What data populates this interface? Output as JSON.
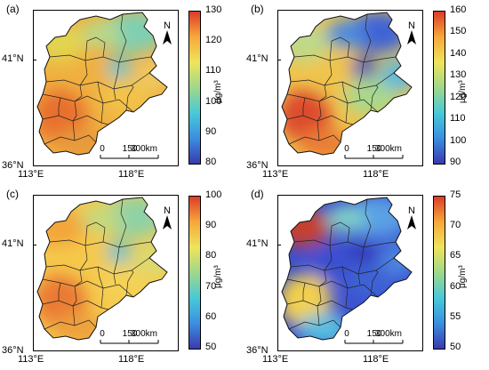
{
  "axes": {
    "lat_north": "41°N",
    "lat_south": "36°N",
    "lon_west": "113°E",
    "lon_east": "118°E"
  },
  "scalebar": {
    "l0": "0",
    "l1": "150",
    "l2": "300km"
  },
  "north": "N",
  "unit": "μg/m³",
  "colormap": [
    "#3a3aaf",
    "#3b8fe0",
    "#48c9d8",
    "#9fd88a",
    "#f0e45a",
    "#f6a83a",
    "#dd3b2a"
  ],
  "panels": [
    {
      "label": "(a)",
      "colorbar_ticks": [
        "130",
        "120",
        "110",
        "100",
        "90",
        "80"
      ],
      "colors": {
        "nw": "#e2d44f",
        "ne": "#7fcfb4",
        "n": "#b6d98b",
        "c": "#f0b040",
        "sw": "#e8702f",
        "s": "#e89a3a",
        "se": "#f2c24a",
        "e": "#eec860",
        "blob": "#62c5cf"
      }
    },
    {
      "label": "(b)",
      "colorbar_ticks": [
        "160",
        "150",
        "140",
        "130",
        "120",
        "110",
        "100",
        "90"
      ],
      "colors": {
        "nw": "#bfd98a",
        "ne": "#3f63d6",
        "n": "#4b8ae0",
        "c": "#f0c44c",
        "sw": "#dd4b2e",
        "s": "#ea7d34",
        "se": "#a8d88c",
        "e": "#5fb8e0",
        "blob": "#3345c2"
      }
    },
    {
      "label": "(c)",
      "colorbar_ticks": [
        "100",
        "90",
        "80",
        "70",
        "60",
        "50"
      ],
      "colors": {
        "nw": "#f3a63a",
        "ne": "#8fd2a6",
        "n": "#c4d97e",
        "c": "#f5c94c",
        "sw": "#ea7a34",
        "s": "#eea23e",
        "se": "#f4d256",
        "e": "#d8db72",
        "blob": "#5bc3d4"
      }
    },
    {
      "label": "(d)",
      "colorbar_ticks": [
        "75",
        "70",
        "65",
        "60",
        "55",
        "50"
      ],
      "colors": {
        "nw": "#c7412e",
        "ne": "#5aa0e4",
        "n": "#7fcfc6",
        "c": "#3b4fd0",
        "sw": "#f2d04e",
        "s": "#56bfe0",
        "se": "#3e62d4",
        "e": "#4d86e0",
        "blob": "#3338b8"
      }
    }
  ]
}
